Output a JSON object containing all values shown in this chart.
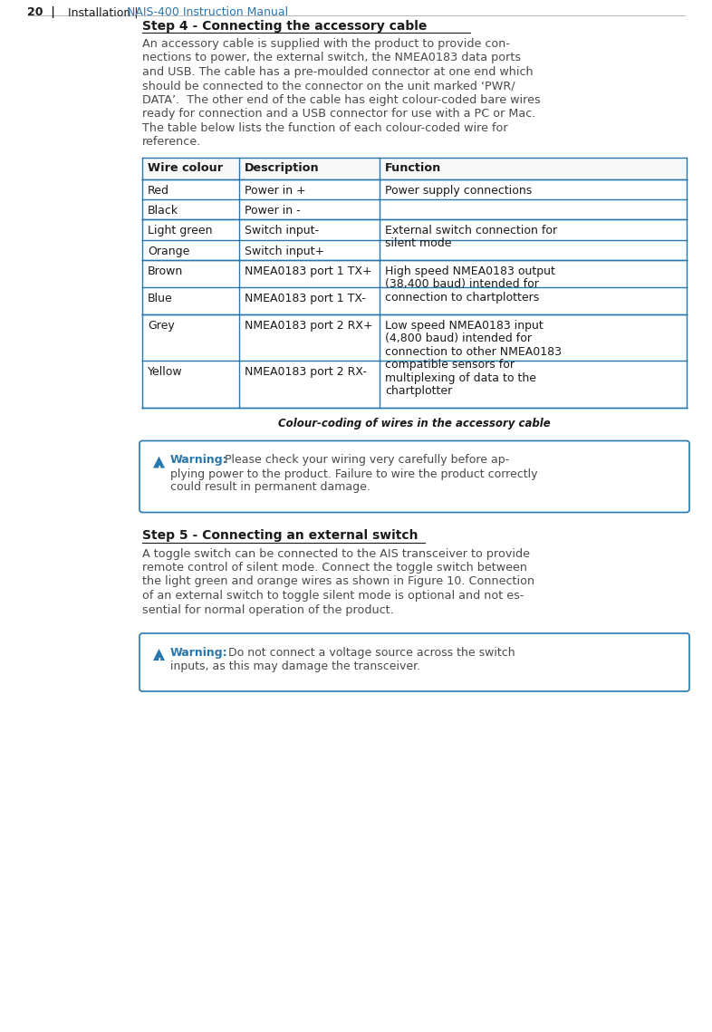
{
  "bg_color": "#ffffff",
  "text_color": "#4a4a4a",
  "dark_text": "#1a1a1a",
  "blue_color": "#2878b0",
  "table_border_color": "#2878b0",
  "warning_border_color": "#2878b0",
  "warning_bg_color": "#ffffff",
  "step4_heading": "Step 4 - Connecting the accessory cable",
  "step4_body": "An accessory cable is supplied with the product to provide con-\nnections to power, the external switch, the NMEA0183 data ports\nand USB. The cable has a pre-moulded connector at one end which\nshould be connected to the connector on the unit marked ‘PWR/\nDATA’.  The other end of the cable has eight colour-coded bare wires\nready for connection and a USB connector for use with a PC or Mac.\nThe table below lists the function of each colour-coded wire for\nreference.",
  "table_headers": [
    "Wire colour",
    "Description",
    "Function"
  ],
  "group_funcs": [
    "Power supply connections",
    "External switch connection for\nsilent mode",
    "High speed NMEA0183 output\n(38,400 baud) intended for\nconnection to chartplotters",
    "Low speed NMEA0183 input\n(4,800 baud) intended for\nconnection to other NMEA0183\ncompatible sensors for\nmultiplexing of data to the\nchartplotter"
  ],
  "rows_data": [
    [
      "Red",
      "Power in +"
    ],
    [
      "Black",
      "Power in -"
    ],
    [
      "Light green",
      "Switch input-"
    ],
    [
      "Orange",
      "Switch input+"
    ],
    [
      "Brown",
      "NMEA0183 port 1 TX+"
    ],
    [
      "Blue",
      "NMEA0183 port 1 TX-"
    ],
    [
      "Grey",
      "NMEA0183 port 2 RX+"
    ],
    [
      "Yellow",
      "NMEA0183 port 2 RX-"
    ]
  ],
  "table_caption": "Colour-coding of wires in the accessory cable",
  "warning1_bold": "Warning:",
  "warning1_text": "  Please check your wiring very carefully before ap-\nplying power to the product. Failure to wire the product correctly\ncould result in permanent damage.",
  "step5_heading": "Step 5 - Connecting an external switch",
  "step5_body": "A toggle switch can be connected to the AIS transceiver to provide\nremote control of silent mode. Connect the toggle switch between\nthe light green and orange wires as shown in Figure 10. Connection\nof an external switch to toggle silent mode is optional and not es-\nsential for normal operation of the product.",
  "warning2_bold": "Warning:",
  "warning2_text": "   Do not connect a voltage source across the switch\ninputs, as this may damage the transceiver.",
  "footer_page": "20  |",
  "footer_section": "  Installation | ",
  "footer_manual": "NAIS-400 Instruction Manual"
}
